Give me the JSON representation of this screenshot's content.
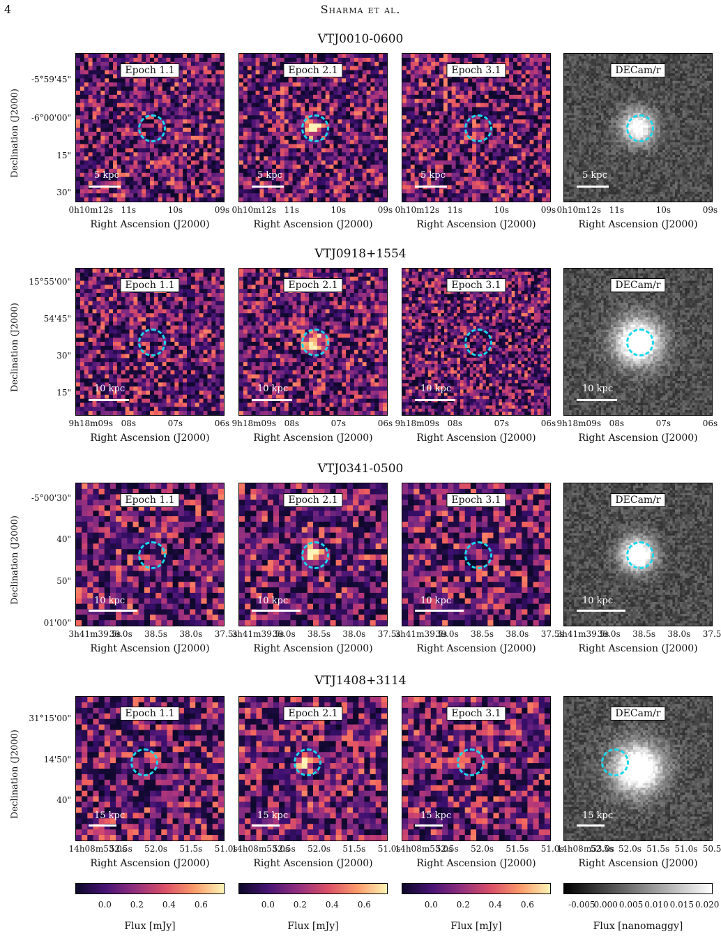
{
  "page_number": "4",
  "running_head": "Sharma et al.",
  "axis_labels": {
    "x": "Right Ascension (J2000)",
    "y": "Declination (J2000)"
  },
  "panel_labels": [
    "Epoch 1.1",
    "Epoch 2.1",
    "Epoch 3.1",
    "DECam/r"
  ],
  "rows": [
    {
      "title": "VTJ0010-0600",
      "scale": "5 kpc",
      "dec_ticks": [
        "-5°59'45\"",
        "-6°00'00\"",
        "15\"",
        "30\""
      ],
      "ra_ticks": [
        "0h10m12s",
        "11s",
        "10s",
        "09s"
      ],
      "ra_ticks_decam": [
        "0h10m12s",
        "11s",
        "10s",
        "09s"
      ]
    },
    {
      "title": "VTJ0918+1554",
      "scale": "10 kpc",
      "dec_ticks": [
        "15°55'00\"",
        "54'45\"",
        "30\"",
        "15\""
      ],
      "ra_ticks": [
        "9h18m09s",
        "08s",
        "07s",
        "06s"
      ],
      "ra_ticks_decam": [
        "9h18m09s",
        "08s",
        "07s",
        "06s"
      ]
    },
    {
      "title": "VTJ0341-0500",
      "scale": "10 kpc",
      "dec_ticks": [
        "-5°00'30\"",
        "40\"",
        "50\"",
        "01'00\""
      ],
      "ra_ticks": [
        "3h41m39.5s",
        "39.0s",
        "38.5s",
        "38.0s",
        "37.5s"
      ],
      "ra_ticks_decam": [
        "3h41m39.5s",
        "39.0s",
        "38.5s",
        "38.0s",
        "37.5s"
      ]
    },
    {
      "title": "VTJ1408+3114",
      "scale": "15 kpc",
      "dec_ticks": [
        "31°15'00\"",
        "14'50\"",
        "40\""
      ],
      "ra_ticks": [
        "14h08m53.0s",
        "52.5s",
        "52.0s",
        "51.5s",
        "51.0s"
      ],
      "ra_ticks_decam": [
        "14h08m53.0s",
        "52.5s",
        "52.0s",
        "51.5s",
        "51.0s",
        "50.5s"
      ]
    }
  ],
  "colorbars": [
    {
      "label": "Flux [mJy]",
      "ticks": [
        "0.0",
        "0.2",
        "0.4",
        "0.6"
      ],
      "colormap": "magma"
    },
    {
      "label": "Flux [mJy]",
      "ticks": [
        "0.0",
        "0.2",
        "0.4",
        "0.6"
      ],
      "colormap": "magma"
    },
    {
      "label": "Flux [mJy]",
      "ticks": [
        "0.0",
        "0.2",
        "0.4",
        "0.6"
      ],
      "colormap": "magma"
    },
    {
      "label": "Flux [nanomaggy]",
      "ticks": [
        "-0.005",
        "0.000",
        "0.005",
        "0.010",
        "0.015",
        "0.020"
      ],
      "colormap": "gray"
    }
  ],
  "colors": {
    "circle": "#1ad8ec",
    "magma_dark": "#0d0829",
    "magma_mid": "#7a2a82",
    "magma_bright": "#fcf4b6"
  }
}
